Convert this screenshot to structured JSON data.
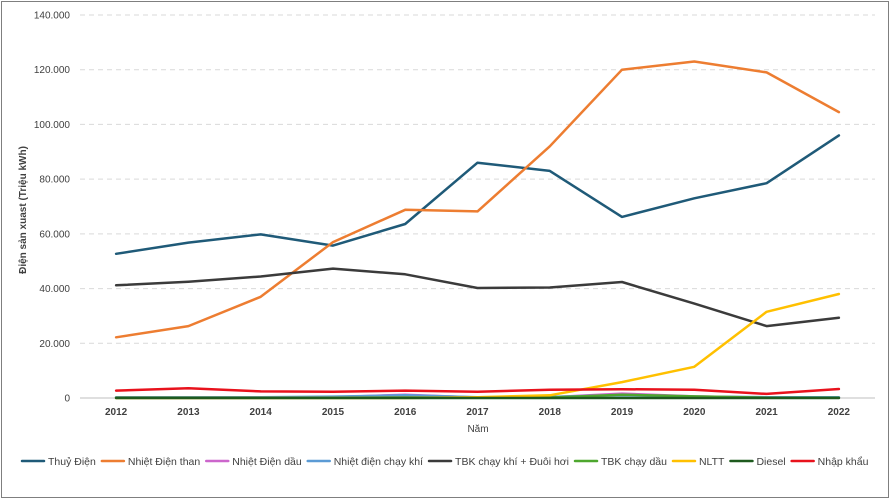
{
  "chart_data": {
    "type": "line",
    "title": "",
    "xlabel": "Năm",
    "ylabel": "Điện sản xuast (Triệu kWh)",
    "ylim": [
      0,
      140000
    ],
    "y_ticks": [
      0,
      20000,
      40000,
      60000,
      80000,
      100000,
      120000,
      140000
    ],
    "y_tick_labels": [
      "0",
      "20.000",
      "40.000",
      "60.000",
      "80.000",
      "100.000",
      "120.000",
      "140.000"
    ],
    "grid": "horizontal dashed",
    "legend_position": "bottom",
    "categories": [
      "2012",
      "2013",
      "2014",
      "2015",
      "2016",
      "2017",
      "2018",
      "2019",
      "2020",
      "2021",
      "2022"
    ],
    "series": [
      {
        "name": "Thuỷ Điện",
        "color": "#1f5a78",
        "values": [
          52700,
          56800,
          59800,
          55700,
          63600,
          86000,
          83000,
          66200,
          73000,
          78500,
          96000
        ]
      },
      {
        "name": "Nhiệt Điện than",
        "color": "#ed7d31",
        "values": [
          22200,
          26300,
          37000,
          57000,
          68800,
          68200,
          92000,
          120000,
          123000,
          119000,
          104500
        ]
      },
      {
        "name": "Nhiệt Điện dầu",
        "color": "#cc66cc",
        "values": [
          200,
          200,
          200,
          300,
          1200,
          200,
          300,
          1600,
          600,
          200,
          200
        ]
      },
      {
        "name": "Nhiệt điện chạy khí",
        "color": "#5b9bd5",
        "values": [
          300,
          300,
          300,
          500,
          1000,
          300,
          400,
          1000,
          500,
          300,
          300
        ]
      },
      {
        "name": "TBK chạy khí + Đuôi hơi",
        "color": "#3b3b3b",
        "values": [
          41200,
          42500,
          44400,
          47300,
          45200,
          40200,
          40400,
          42400,
          34500,
          26300,
          29300
        ]
      },
      {
        "name": "TBK chạy dầu",
        "color": "#4ea72e",
        "values": [
          100,
          100,
          100,
          100,
          200,
          100,
          200,
          1200,
          600,
          100,
          100
        ]
      },
      {
        "name": "NLTT",
        "color": "#ffc000",
        "values": [
          0,
          0,
          0,
          0,
          0,
          300,
          1000,
          5800,
          11400,
          31500,
          38000
        ]
      },
      {
        "name": "Diesel",
        "color": "#1e5a1e",
        "values": [
          0,
          0,
          0,
          0,
          0,
          0,
          0,
          0,
          0,
          0,
          0
        ]
      },
      {
        "name": "Nhập khẩu",
        "color": "#e8121c",
        "values": [
          2700,
          3600,
          2400,
          2300,
          2700,
          2300,
          3000,
          3200,
          3000,
          1500,
          3300
        ]
      }
    ]
  }
}
